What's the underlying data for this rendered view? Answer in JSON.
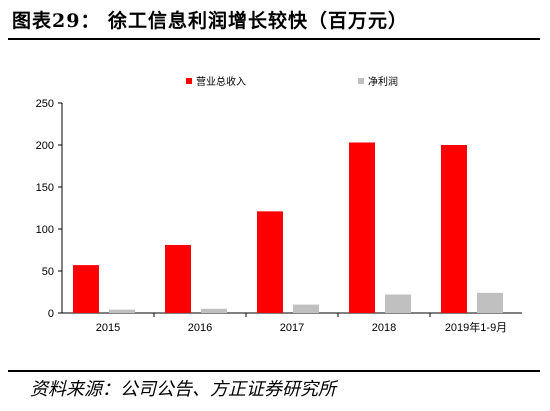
{
  "figure": {
    "title": "图表29：  徐工信息利润增长较快（百万元）",
    "source": "资料来源：公司公告、方正证券研究所"
  },
  "chart_data": {
    "type": "bar",
    "categories": [
      "2015",
      "2016",
      "2017",
      "2018",
      "2019年1-9月"
    ],
    "series": [
      {
        "name": "营业总收入",
        "color": "#ff0000",
        "values": [
          57,
          81,
          121,
          203,
          200
        ]
      },
      {
        "name": "净利润",
        "color": "#c0c0c0",
        "values": [
          4,
          5,
          10,
          22,
          24
        ]
      }
    ],
    "ylim": [
      0,
      250
    ],
    "yticks": [
      "0",
      "50",
      "100",
      "150",
      "200",
      "250"
    ],
    "xlabel": "",
    "ylabel": "",
    "grid": false,
    "legend_position": "top"
  }
}
